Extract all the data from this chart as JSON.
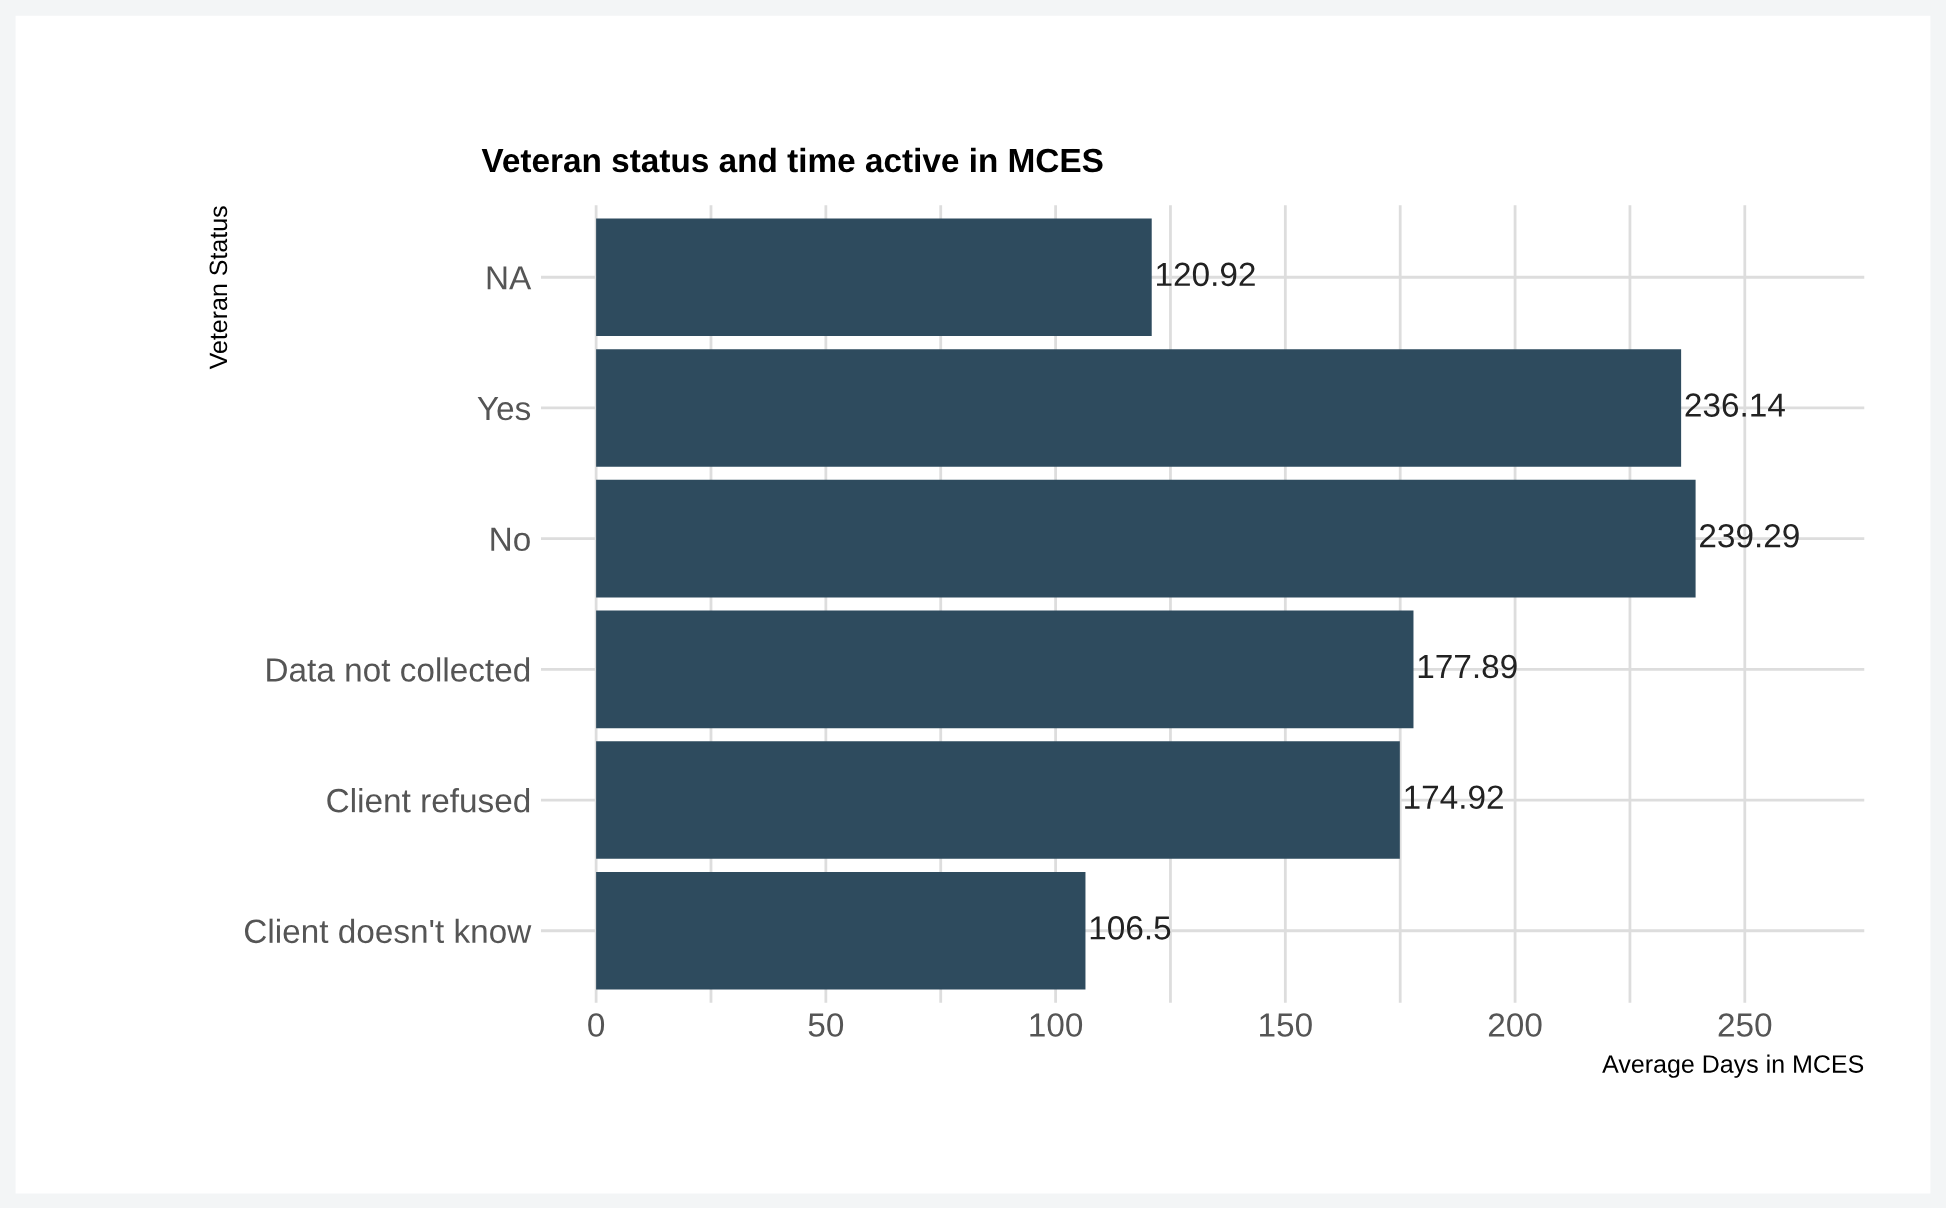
{
  "chart_data": {
    "type": "bar",
    "orientation": "horizontal",
    "title": "Veteran status and time active in MCES",
    "xlabel": "Average Days in MCES",
    "ylabel": "Veteran Status",
    "categories": [
      "NA",
      "Yes",
      "No",
      "Data not collected",
      "Client refused",
      "Client doesn't know"
    ],
    "values": [
      120.92,
      236.14,
      239.29,
      177.89,
      174.92,
      106.5
    ],
    "color": "#2e4b5e",
    "data_labels": true,
    "xlim": [
      -12,
      276
    ],
    "xticks": [
      0,
      {
        "value": 25,
        "label": null
      },
      50,
      {
        "value": 75,
        "label": null
      },
      100,
      {
        "value": 125,
        "label": null
      },
      150,
      {
        "value": 175,
        "label": null
      },
      200,
      {
        "value": 225,
        "label": null
      },
      250
    ],
    "grid": true
  }
}
